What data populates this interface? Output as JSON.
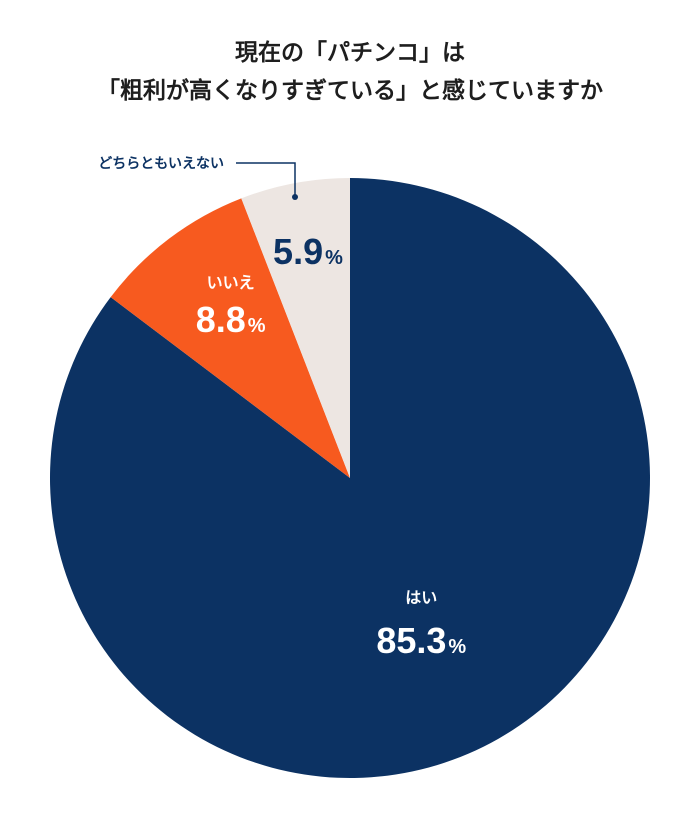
{
  "chart_data": {
    "type": "pie",
    "title": [
      "現在の「パチンコ」は",
      "「粗利が高くなりすぎている」と感じていますか"
    ],
    "categories": [
      "はい",
      "いいえ",
      "どちらともいえない"
    ],
    "values": [
      85.3,
      8.8,
      5.9
    ],
    "display": [
      "85.3",
      "8.8",
      "5.9"
    ],
    "unit": "%",
    "colors": [
      "#0c3263",
      "#f75a1f",
      "#ede6e2"
    ],
    "label_colors": [
      "#ffffff",
      "#ffffff",
      "#0c3263"
    ],
    "callout_color": "#0c3263"
  }
}
